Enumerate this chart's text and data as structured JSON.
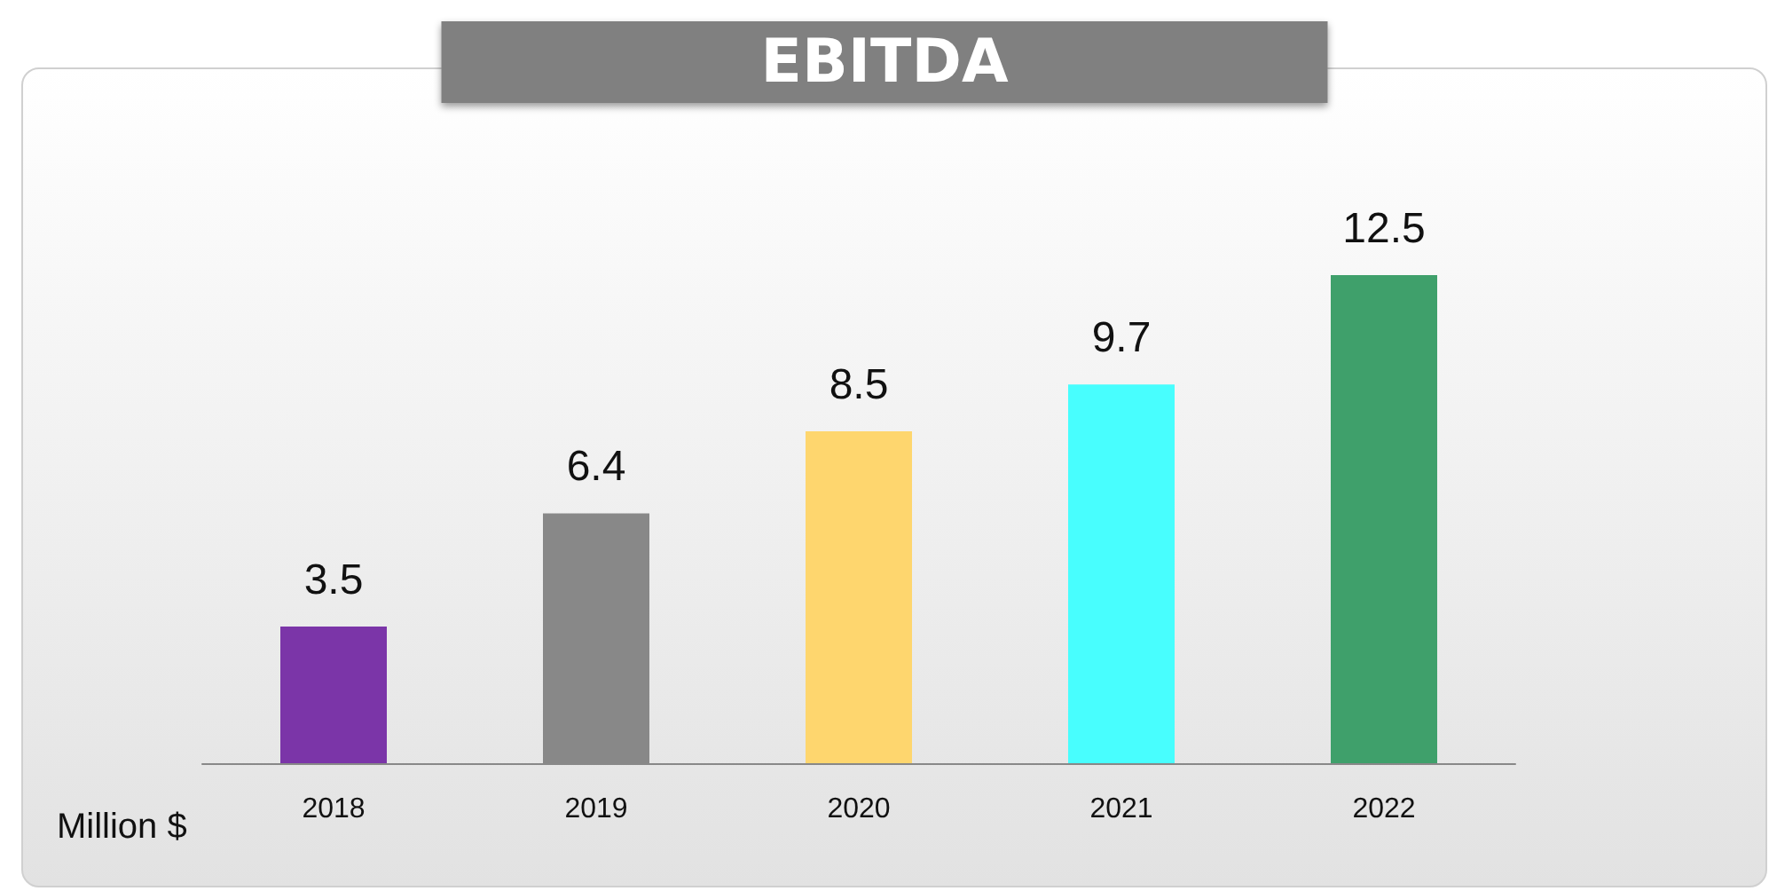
{
  "chart_data": {
    "type": "bar",
    "title": "EBITDA",
    "ylabel": "Million $",
    "categories": [
      "2018",
      "2019",
      "2020",
      "2021",
      "2022"
    ],
    "values": [
      3.5,
      6.4,
      8.5,
      9.7,
      12.5
    ],
    "colors": [
      "#7b35a8",
      "#888888",
      "#fed66e",
      "#48fefe",
      "#3fa06b"
    ],
    "data_labels": true
  }
}
